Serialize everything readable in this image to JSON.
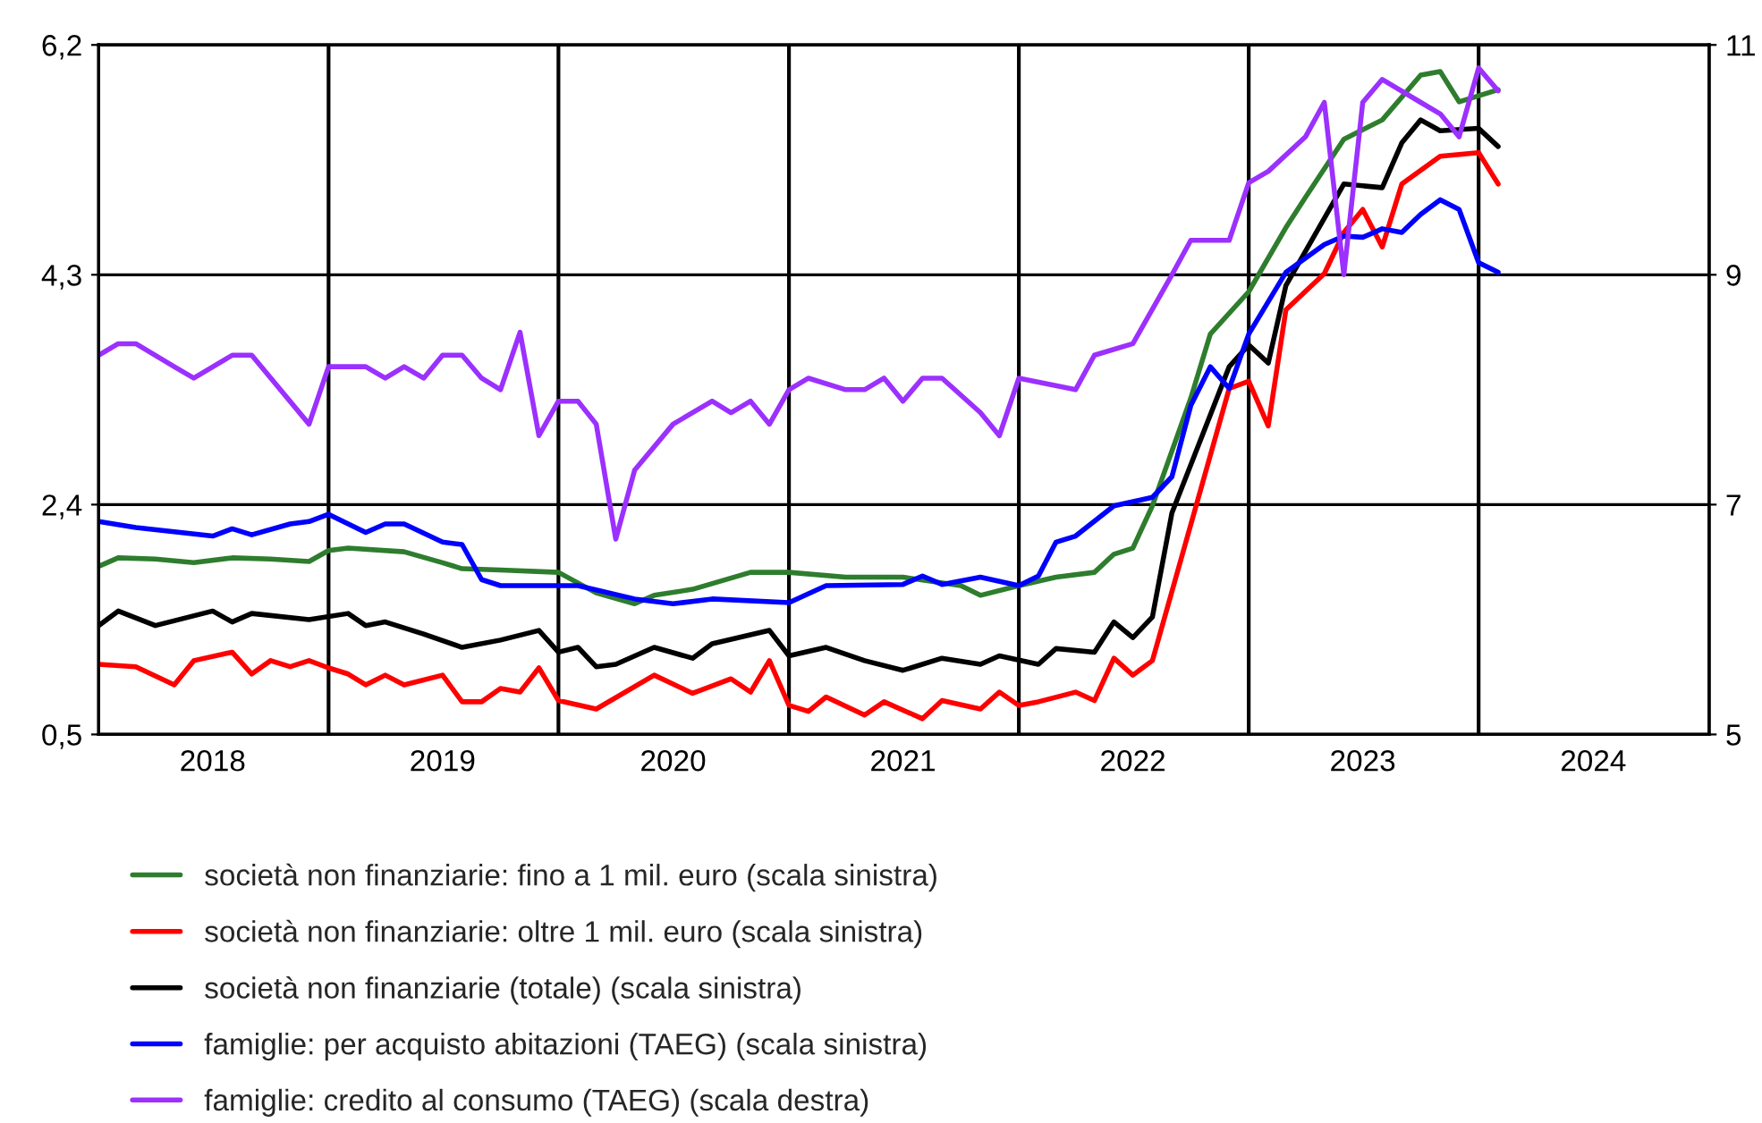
{
  "chart_data": {
    "type": "line",
    "xlim": [
      "2018-01-01",
      "2025-01-01"
    ],
    "xticks": [
      {
        "value": "2018-07-01",
        "label": "2018"
      },
      {
        "value": "2019-07-01",
        "label": "2019"
      },
      {
        "value": "2020-07-01",
        "label": "2020"
      },
      {
        "value": "2021-07-01",
        "label": "2021"
      },
      {
        "value": "2022-07-01",
        "label": "2022"
      },
      {
        "value": "2023-07-01",
        "label": "2023"
      },
      {
        "value": "2024-07-01",
        "label": "2024"
      }
    ],
    "ylim": [
      0.5,
      6.2
    ],
    "yticks": [
      {
        "value": 0.5,
        "label": "0,5"
      },
      {
        "value": 2.4,
        "label": "2,4"
      },
      {
        "value": 4.3,
        "label": "4,3"
      },
      {
        "value": 6.2,
        "label": "6,2"
      }
    ],
    "y2lim": [
      5,
      11
    ],
    "y2ticks": [
      5,
      7,
      9,
      11
    ],
    "grid": "y",
    "legend": "bottom",
    "ref_lines": [
      {
        "axis": "x",
        "value": "2019-01-01",
        "color": "#000000"
      },
      {
        "axis": "x",
        "value": "2020-01-01",
        "color": "#000000"
      },
      {
        "axis": "x",
        "value": "2021-01-01",
        "color": "#000000"
      },
      {
        "axis": "x",
        "value": "2022-01-01",
        "color": "#000000"
      },
      {
        "axis": "x",
        "value": "2023-01-01",
        "color": "#000000"
      },
      {
        "axis": "x",
        "value": "2024-01-01",
        "color": "#000000"
      }
    ],
    "series": [
      {
        "name": "società non finanziarie: fino a 1 mil. euro (scala sinistra)",
        "color": "#2e7d2e",
        "x": [
          "2018-01",
          "2018-02",
          "2018-04",
          "2018-06",
          "2018-08",
          "2018-10",
          "2018-12",
          "2019-01",
          "2019-02",
          "2019-05",
          "2019-07",
          "2019-08",
          "2019-10",
          "2020-01",
          "2020-03",
          "2020-05",
          "2020-06",
          "2020-08",
          "2020-11",
          "2021-01",
          "2021-04",
          "2021-07",
          "2021-10",
          "2021-11",
          "2022-01",
          "2022-03",
          "2022-05",
          "2022-06",
          "2022-07",
          "2022-08",
          "2022-10",
          "2022-11",
          "2023-01",
          "2023-03",
          "2023-04",
          "2023-06",
          "2023-08",
          "2023-10",
          "2023-11",
          "2023-12",
          "2024-02"
        ],
        "values": [
          1.89,
          1.96,
          1.95,
          1.92,
          1.96,
          1.95,
          1.93,
          2.02,
          2.04,
          2.01,
          1.92,
          1.87,
          1.86,
          1.84,
          1.67,
          1.58,
          1.65,
          1.7,
          1.84,
          1.84,
          1.8,
          1.8,
          1.73,
          1.65,
          1.73,
          1.8,
          1.84,
          1.99,
          2.04,
          2.39,
          3.28,
          3.81,
          4.16,
          4.69,
          4.94,
          5.42,
          5.58,
          5.95,
          5.98,
          5.73,
          5.83
        ]
      },
      {
        "name": "società non finanziarie: oltre 1 mil. euro (scala sinistra)",
        "color": "#ff0000",
        "x": [
          "2018-01",
          "2018-03",
          "2018-05",
          "2018-06",
          "2018-08",
          "2018-09",
          "2018-10",
          "2018-11",
          "2018-12",
          "2019-01",
          "2019-02",
          "2019-03",
          "2019-04",
          "2019-05",
          "2019-07",
          "2019-08",
          "2019-09",
          "2019-10",
          "2019-11",
          "2019-12",
          "2020-01",
          "2020-03",
          "2020-06",
          "2020-08",
          "2020-10",
          "2020-11",
          "2020-12",
          "2021-01",
          "2021-02",
          "2021-03",
          "2021-05",
          "2021-06",
          "2021-08",
          "2021-09",
          "2021-11",
          "2021-12",
          "2022-01",
          "2022-02",
          "2022-04",
          "2022-05",
          "2022-06",
          "2022-07",
          "2022-08",
          "2022-12",
          "2023-01",
          "2023-02",
          "2023-03",
          "2023-05",
          "2023-06",
          "2023-07",
          "2023-08",
          "2023-09",
          "2023-11",
          "2024-01",
          "2024-02"
        ],
        "values": [
          1.08,
          1.06,
          0.91,
          1.11,
          1.18,
          1.0,
          1.11,
          1.06,
          1.11,
          1.05,
          1.0,
          0.91,
          0.99,
          0.91,
          0.99,
          0.77,
          0.77,
          0.88,
          0.85,
          1.05,
          0.78,
          0.71,
          0.99,
          0.84,
          0.96,
          0.85,
          1.11,
          0.74,
          0.69,
          0.81,
          0.66,
          0.77,
          0.63,
          0.78,
          0.71,
          0.85,
          0.74,
          0.77,
          0.85,
          0.78,
          1.13,
          0.99,
          1.11,
          3.36,
          3.42,
          3.05,
          4.01,
          4.31,
          4.65,
          4.84,
          4.53,
          5.05,
          5.28,
          5.31,
          5.05
        ]
      },
      {
        "name": "società non finanziarie (totale) (scala sinistra)",
        "color": "#000000",
        "x": [
          "2018-01",
          "2018-02",
          "2018-04",
          "2018-07",
          "2018-08",
          "2018-09",
          "2018-12",
          "2019-02",
          "2019-03",
          "2019-04",
          "2019-06",
          "2019-08",
          "2019-10",
          "2019-12",
          "2020-01",
          "2020-02",
          "2020-03",
          "2020-04",
          "2020-06",
          "2020-08",
          "2020-09",
          "2020-12",
          "2021-01",
          "2021-03",
          "2021-05",
          "2021-07",
          "2021-09",
          "2021-11",
          "2021-12",
          "2022-02",
          "2022-03",
          "2022-05",
          "2022-06",
          "2022-07",
          "2022-08",
          "2022-09",
          "2022-12",
          "2023-01",
          "2023-02",
          "2023-03",
          "2023-06",
          "2023-08",
          "2023-09",
          "2023-10",
          "2023-11",
          "2024-01",
          "2024-02"
        ],
        "values": [
          1.4,
          1.52,
          1.4,
          1.52,
          1.43,
          1.5,
          1.45,
          1.5,
          1.4,
          1.43,
          1.33,
          1.22,
          1.28,
          1.36,
          1.18,
          1.22,
          1.06,
          1.08,
          1.22,
          1.13,
          1.25,
          1.36,
          1.15,
          1.22,
          1.11,
          1.03,
          1.13,
          1.08,
          1.15,
          1.08,
          1.21,
          1.18,
          1.43,
          1.3,
          1.47,
          2.33,
          3.54,
          3.72,
          3.57,
          4.21,
          5.05,
          5.02,
          5.39,
          5.58,
          5.49,
          5.51,
          5.36
        ]
      },
      {
        "name": "famiglie: per acquisto abitazioni (TAEG) (scala sinistra)",
        "color": "#0000ff",
        "x": [
          "2018-01",
          "2018-03",
          "2018-07",
          "2018-08",
          "2018-09",
          "2018-11",
          "2018-12",
          "2019-01",
          "2019-03",
          "2019-04",
          "2019-05",
          "2019-07",
          "2019-08",
          "2019-09",
          "2019-10",
          "2020-01",
          "2020-02",
          "2020-05",
          "2020-07",
          "2020-09",
          "2021-01",
          "2021-03",
          "2021-07",
          "2021-08",
          "2021-09",
          "2021-11",
          "2022-01",
          "2022-02",
          "2022-03",
          "2022-04",
          "2022-06",
          "2022-08",
          "2022-09",
          "2022-10",
          "2022-11",
          "2022-12",
          "2023-01",
          "2023-03",
          "2023-05",
          "2023-06",
          "2023-07",
          "2023-08",
          "2023-09",
          "2023-10",
          "2023-11",
          "2023-12",
          "2024-01",
          "2024-02"
        ],
        "values": [
          2.26,
          2.21,
          2.14,
          2.2,
          2.15,
          2.24,
          2.26,
          2.32,
          2.17,
          2.24,
          2.24,
          2.09,
          2.07,
          1.78,
          1.73,
          1.73,
          1.73,
          1.62,
          1.58,
          1.62,
          1.59,
          1.73,
          1.74,
          1.81,
          1.74,
          1.8,
          1.73,
          1.81,
          2.09,
          2.14,
          2.39,
          2.46,
          2.63,
          3.22,
          3.54,
          3.36,
          3.81,
          4.32,
          4.55,
          4.62,
          4.61,
          4.68,
          4.65,
          4.8,
          4.92,
          4.84,
          4.4,
          4.32
        ]
      },
      {
        "name": "famiglie: credito al consumo (TAEG) (scala destra)",
        "color": "#9b30ff",
        "axis": "y2",
        "x": [
          "2018-01",
          "2018-02",
          "2018-03",
          "2018-05",
          "2018-06",
          "2018-08",
          "2018-09",
          "2018-12",
          "2019-01",
          "2019-03",
          "2019-04",
          "2019-05",
          "2019-06",
          "2019-07",
          "2019-08",
          "2019-09",
          "2019-10",
          "2019-11",
          "2019-12",
          "2020-01",
          "2020-02",
          "2020-03",
          "2020-04",
          "2020-05",
          "2020-07",
          "2020-09",
          "2020-10",
          "2020-11",
          "2020-12",
          "2021-01",
          "2021-02",
          "2021-04",
          "2021-05",
          "2021-06",
          "2021-07",
          "2021-08",
          "2021-09",
          "2021-11",
          "2021-12",
          "2022-01",
          "2022-04",
          "2022-05",
          "2022-07",
          "2022-08",
          "2022-09",
          "2022-10",
          "2022-12",
          "2023-01",
          "2023-02",
          "2023-04",
          "2023-05",
          "2023-06",
          "2023-07",
          "2023-08",
          "2023-10",
          "2023-11",
          "2023-12",
          "2024-01",
          "2024-02"
        ],
        "values": [
          8.3,
          8.4,
          8.4,
          8.2,
          8.1,
          8.3,
          8.3,
          7.7,
          8.2,
          8.2,
          8.1,
          8.2,
          8.1,
          8.3,
          8.3,
          8.1,
          8.0,
          8.5,
          7.6,
          7.9,
          7.9,
          7.7,
          6.7,
          7.3,
          7.7,
          7.9,
          7.8,
          7.9,
          7.7,
          8.0,
          8.1,
          8.0,
          8.0,
          8.1,
          7.9,
          8.1,
          8.1,
          7.8,
          7.6,
          8.1,
          8.0,
          8.3,
          8.4,
          8.7,
          9.0,
          9.3,
          9.3,
          9.8,
          9.9,
          10.2,
          10.5,
          9.0,
          10.5,
          10.7,
          10.5,
          10.4,
          10.2,
          10.8,
          10.6
        ]
      }
    ]
  }
}
